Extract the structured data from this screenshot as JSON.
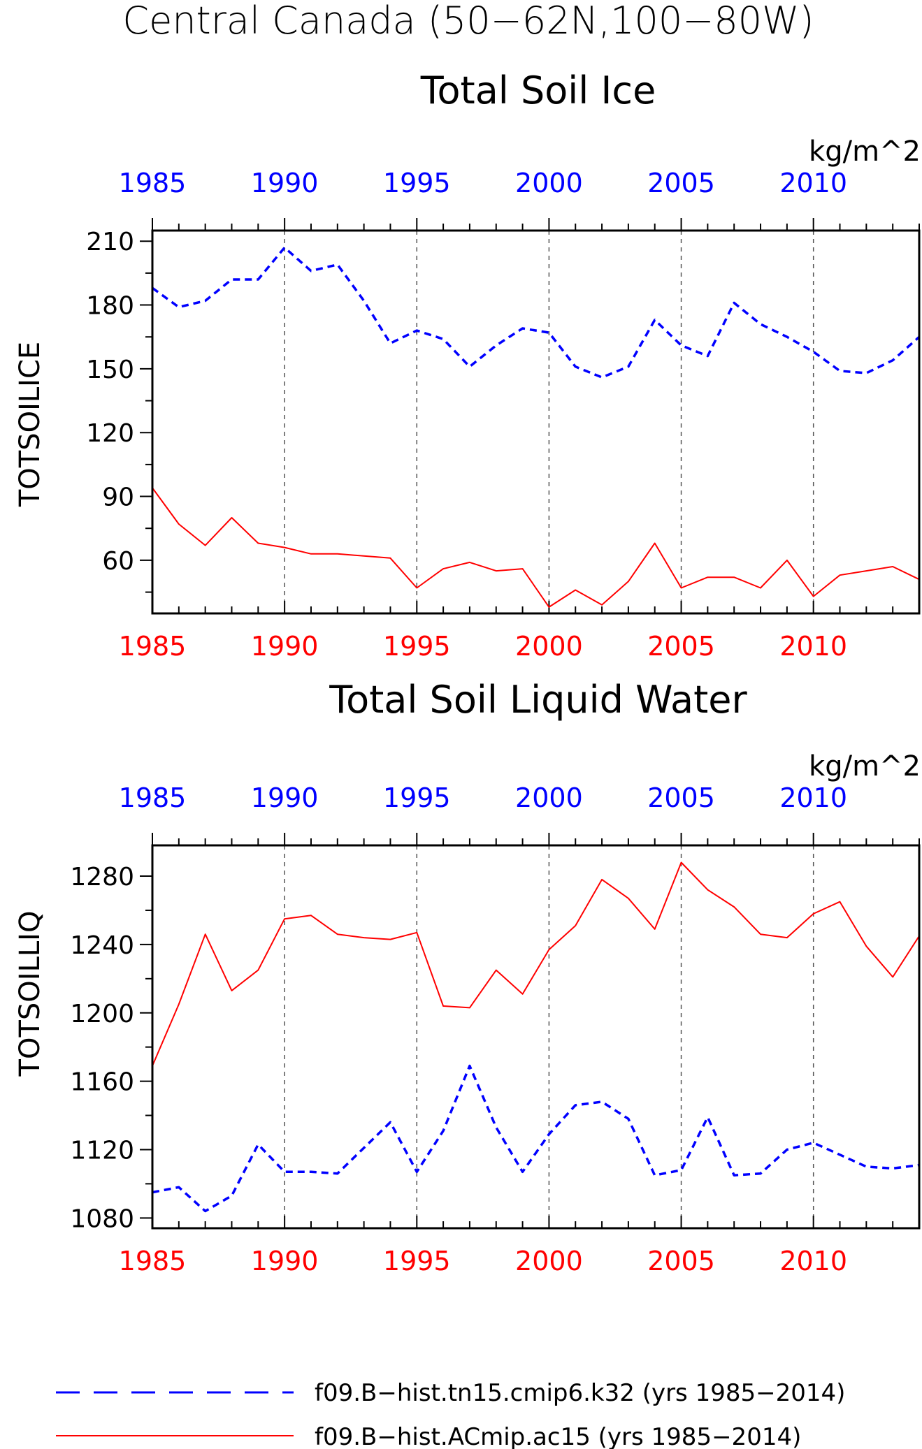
{
  "title": "Central Canada (50−62N,100−80W)",
  "colors": {
    "model_a": "#0000ff",
    "model_b": "#ff0000",
    "axis": "#000000",
    "grid": "#555555"
  },
  "chart_data": [
    {
      "type": "line",
      "title": "Total Soil Ice",
      "ylabel": "TOTSOILICE",
      "units": "kg/m^2",
      "x": [
        1985,
        1986,
        1987,
        1988,
        1989,
        1990,
        1991,
        1992,
        1993,
        1994,
        1995,
        1996,
        1997,
        1998,
        1999,
        2000,
        2001,
        2002,
        2003,
        2004,
        2005,
        2006,
        2007,
        2008,
        2009,
        2010,
        2011,
        2012,
        2013,
        2014
      ],
      "xlim": [
        1985,
        2014
      ],
      "xticks": [
        1985,
        1990,
        1995,
        2000,
        2005,
        2010
      ],
      "ylim": [
        35,
        215
      ],
      "yticks": [
        60,
        90,
        120,
        150,
        180,
        210
      ],
      "grid": "vertical dashed at labeled years",
      "series": [
        {
          "name": "f09.B−hist.tn15.cmip6.k32 (yrs 1985−2014)",
          "color": "#0000ff",
          "style": "dashed",
          "values": [
            188,
            179,
            182,
            192,
            192,
            207,
            196,
            199,
            182,
            162,
            168,
            164,
            151,
            161,
            169,
            167,
            151,
            146,
            151,
            173,
            161,
            156,
            181,
            171,
            165,
            158,
            149,
            148,
            154,
            165
          ]
        },
        {
          "name": "f09.B−hist.ACmip.ac15 (yrs 1985−2014)",
          "color": "#ff0000",
          "style": "solid",
          "values": [
            94,
            77,
            67,
            80,
            68,
            66,
            63,
            63,
            62,
            61,
            47,
            56,
            59,
            55,
            56,
            38,
            46,
            39,
            50,
            68,
            47,
            52,
            52,
            47,
            60,
            43,
            53,
            55,
            57,
            51
          ]
        }
      ]
    },
    {
      "type": "line",
      "title": "Total Soil Liquid Water",
      "ylabel": "TOTSOILLIQ",
      "units": "kg/m^2",
      "x": [
        1985,
        1986,
        1987,
        1988,
        1989,
        1990,
        1991,
        1992,
        1993,
        1994,
        1995,
        1996,
        1997,
        1998,
        1999,
        2000,
        2001,
        2002,
        2003,
        2004,
        2005,
        2006,
        2007,
        2008,
        2009,
        2010,
        2011,
        2012,
        2013,
        2014
      ],
      "xlim": [
        1985,
        2014
      ],
      "xticks": [
        1985,
        1990,
        1995,
        2000,
        2005,
        2010
      ],
      "ylim": [
        1074,
        1298
      ],
      "yticks": [
        1080,
        1120,
        1160,
        1200,
        1240,
        1280
      ],
      "grid": "vertical dashed at labeled years",
      "series": [
        {
          "name": "f09.B−hist.tn15.cmip6.k32 (yrs 1985−2014)",
          "color": "#0000ff",
          "style": "dashed",
          "values": [
            1095,
            1098,
            1084,
            1093,
            1123,
            1107,
            1107,
            1106,
            1121,
            1136,
            1107,
            1131,
            1169,
            1133,
            1107,
            1129,
            1146,
            1148,
            1138,
            1105,
            1108,
            1139,
            1105,
            1106,
            1120,
            1124,
            1117,
            1110,
            1109,
            1111
          ]
        },
        {
          "name": "f09.B−hist.ACmip.ac15 (yrs 1985−2014)",
          "color": "#ff0000",
          "style": "solid",
          "values": [
            1169,
            1205,
            1246,
            1213,
            1225,
            1255,
            1257,
            1246,
            1244,
            1243,
            1247,
            1204,
            1203,
            1225,
            1211,
            1237,
            1251,
            1278,
            1267,
            1249,
            1288,
            1272,
            1262,
            1246,
            1244,
            1258,
            1265,
            1239,
            1221,
            1245
          ]
        }
      ]
    }
  ],
  "legend": [
    {
      "label": "f09.B−hist.tn15.cmip6.k32 (yrs 1985−2014)",
      "color": "#0000ff",
      "style": "dashed"
    },
    {
      "label": "f09.B−hist.ACmip.ac15 (yrs 1985−2014)",
      "color": "#ff0000",
      "style": "solid"
    }
  ]
}
